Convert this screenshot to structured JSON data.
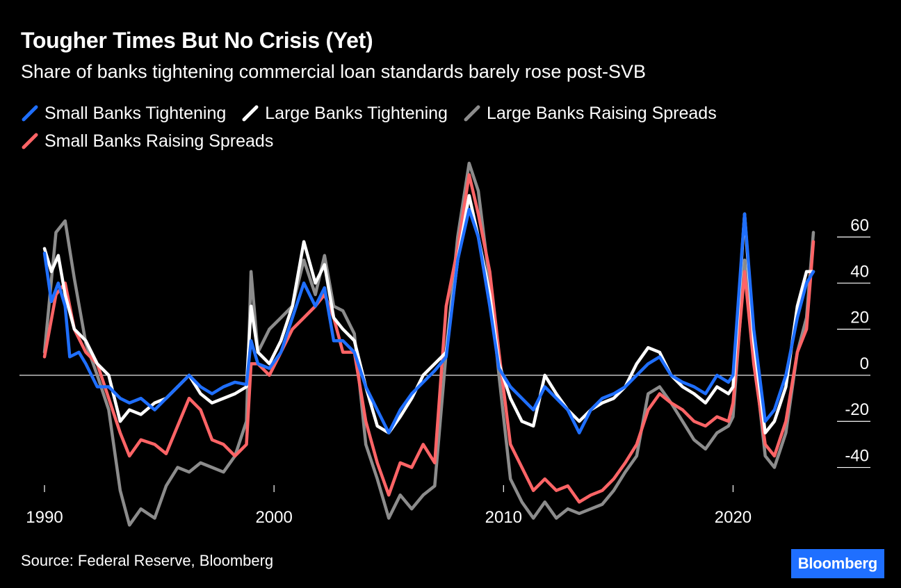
{
  "title": "Tougher Times But No Crisis (Yet)",
  "subtitle": "Share of banks tightening commercial loan standards barely rose post-SVB",
  "source": "Source: Federal Reserve, Bloomberg",
  "brand": "Bloomberg",
  "chart_data": {
    "type": "line",
    "title": "Tougher Times But No Crisis (Yet)",
    "subtitle": "Share of banks tightening commercial loan standards barely rose post-SVB",
    "xlabel": "",
    "ylabel": "",
    "xlim": [
      1990,
      2023.5
    ],
    "ylim": [
      -70,
      95
    ],
    "x_ticks": [
      {
        "value": 1990,
        "label": "1990"
      },
      {
        "value": 2000,
        "label": "2000"
      },
      {
        "value": 2010,
        "label": "2010"
      },
      {
        "value": 2020,
        "label": "2020"
      }
    ],
    "y_ticks": [
      {
        "value": 60,
        "label": "60"
      },
      {
        "value": 40,
        "label": "40"
      },
      {
        "value": 20,
        "label": "20"
      },
      {
        "value": 0,
        "label": "0"
      },
      {
        "value": -20,
        "label": "-20"
      },
      {
        "value": -40,
        "label": "-40"
      }
    ],
    "zero_line": 0,
    "grid": false,
    "legend_position": "top-left",
    "series": [
      {
        "name": "Large Banks Raising Spreads",
        "color": "#8c8c8c",
        "points": [
          [
            1990.0,
            10
          ],
          [
            1990.5,
            62
          ],
          [
            1990.9,
            67
          ],
          [
            1991.3,
            42
          ],
          [
            1991.8,
            14
          ],
          [
            1992.3,
            0
          ],
          [
            1992.8,
            -15
          ],
          [
            1993.3,
            -50
          ],
          [
            1993.7,
            -65
          ],
          [
            1994.2,
            -58
          ],
          [
            1994.8,
            -62
          ],
          [
            1995.3,
            -48
          ],
          [
            1995.8,
            -40
          ],
          [
            1996.3,
            -42
          ],
          [
            1996.8,
            -38
          ],
          [
            1997.3,
            -40
          ],
          [
            1997.8,
            -42
          ],
          [
            1998.3,
            -35
          ],
          [
            1998.8,
            -20
          ],
          [
            1999.0,
            45
          ],
          [
            1999.3,
            10
          ],
          [
            1999.8,
            20
          ],
          [
            2000.3,
            25
          ],
          [
            2000.8,
            30
          ],
          [
            2001.3,
            50
          ],
          [
            2001.8,
            35
          ],
          [
            2002.2,
            52
          ],
          [
            2002.6,
            30
          ],
          [
            2003.0,
            28
          ],
          [
            2003.5,
            18
          ],
          [
            2004.0,
            -30
          ],
          [
            2004.5,
            -45
          ],
          [
            2005.0,
            -62
          ],
          [
            2005.5,
            -52
          ],
          [
            2006.0,
            -58
          ],
          [
            2006.5,
            -52
          ],
          [
            2007.0,
            -48
          ],
          [
            2007.5,
            10
          ],
          [
            2008.0,
            60
          ],
          [
            2008.5,
            92
          ],
          [
            2008.9,
            80
          ],
          [
            2009.4,
            40
          ],
          [
            2009.8,
            0
          ],
          [
            2010.3,
            -45
          ],
          [
            2010.8,
            -55
          ],
          [
            2011.3,
            -62
          ],
          [
            2011.8,
            -55
          ],
          [
            2012.3,
            -62
          ],
          [
            2012.8,
            -58
          ],
          [
            2013.3,
            -60
          ],
          [
            2013.8,
            -58
          ],
          [
            2014.3,
            -56
          ],
          [
            2014.8,
            -50
          ],
          [
            2015.3,
            -42
          ],
          [
            2015.8,
            -35
          ],
          [
            2016.3,
            -8
          ],
          [
            2016.8,
            -5
          ],
          [
            2017.3,
            -12
          ],
          [
            2017.8,
            -20
          ],
          [
            2018.3,
            -28
          ],
          [
            2018.8,
            -32
          ],
          [
            2019.3,
            -25
          ],
          [
            2019.8,
            -22
          ],
          [
            2020.0,
            -18
          ],
          [
            2020.5,
            50
          ],
          [
            2020.9,
            10
          ],
          [
            2021.4,
            -35
          ],
          [
            2021.8,
            -40
          ],
          [
            2022.3,
            -25
          ],
          [
            2022.8,
            10
          ],
          [
            2023.2,
            25
          ],
          [
            2023.5,
            62
          ]
        ]
      },
      {
        "name": "Small Banks Raising Spreads",
        "color": "#ff6466",
        "points": [
          [
            1990.0,
            8
          ],
          [
            1990.5,
            35
          ],
          [
            1990.9,
            40
          ],
          [
            1991.3,
            20
          ],
          [
            1991.8,
            10
          ],
          [
            1992.3,
            5
          ],
          [
            1992.8,
            -10
          ],
          [
            1993.3,
            -25
          ],
          [
            1993.7,
            -35
          ],
          [
            1994.2,
            -28
          ],
          [
            1994.8,
            -30
          ],
          [
            1995.3,
            -34
          ],
          [
            1995.8,
            -22
          ],
          [
            1996.3,
            -10
          ],
          [
            1996.8,
            -15
          ],
          [
            1997.3,
            -28
          ],
          [
            1997.8,
            -30
          ],
          [
            1998.3,
            -35
          ],
          [
            1998.8,
            -30
          ],
          [
            1999.0,
            5
          ],
          [
            1999.3,
            5
          ],
          [
            1999.8,
            0
          ],
          [
            2000.3,
            10
          ],
          [
            2000.8,
            20
          ],
          [
            2001.3,
            25
          ],
          [
            2001.8,
            30
          ],
          [
            2002.2,
            35
          ],
          [
            2002.6,
            25
          ],
          [
            2003.0,
            10
          ],
          [
            2003.5,
            10
          ],
          [
            2004.0,
            -20
          ],
          [
            2004.5,
            -38
          ],
          [
            2005.0,
            -52
          ],
          [
            2005.5,
            -38
          ],
          [
            2006.0,
            -40
          ],
          [
            2006.5,
            -30
          ],
          [
            2007.0,
            -38
          ],
          [
            2007.5,
            30
          ],
          [
            2008.0,
            55
          ],
          [
            2008.5,
            87
          ],
          [
            2008.9,
            70
          ],
          [
            2009.4,
            45
          ],
          [
            2009.8,
            10
          ],
          [
            2010.3,
            -30
          ],
          [
            2010.8,
            -40
          ],
          [
            2011.3,
            -50
          ],
          [
            2011.8,
            -45
          ],
          [
            2012.3,
            -50
          ],
          [
            2012.8,
            -48
          ],
          [
            2013.3,
            -55
          ],
          [
            2013.8,
            -52
          ],
          [
            2014.3,
            -50
          ],
          [
            2014.8,
            -45
          ],
          [
            2015.3,
            -38
          ],
          [
            2015.8,
            -30
          ],
          [
            2016.3,
            -15
          ],
          [
            2016.8,
            -8
          ],
          [
            2017.3,
            -12
          ],
          [
            2017.8,
            -15
          ],
          [
            2018.3,
            -20
          ],
          [
            2018.8,
            -22
          ],
          [
            2019.3,
            -18
          ],
          [
            2019.8,
            -20
          ],
          [
            2020.0,
            -12
          ],
          [
            2020.5,
            45
          ],
          [
            2020.9,
            5
          ],
          [
            2021.4,
            -30
          ],
          [
            2021.8,
            -35
          ],
          [
            2022.3,
            -20
          ],
          [
            2022.8,
            10
          ],
          [
            2023.2,
            20
          ],
          [
            2023.5,
            58
          ]
        ]
      },
      {
        "name": "Large Banks Tightening",
        "color": "#ffffff",
        "points": [
          [
            1990.0,
            55
          ],
          [
            1990.3,
            45
          ],
          [
            1990.6,
            52
          ],
          [
            1990.9,
            35
          ],
          [
            1991.3,
            20
          ],
          [
            1991.8,
            15
          ],
          [
            1992.3,
            5
          ],
          [
            1992.8,
            0
          ],
          [
            1993.3,
            -20
          ],
          [
            1993.7,
            -15
          ],
          [
            1994.2,
            -17
          ],
          [
            1994.8,
            -12
          ],
          [
            1995.3,
            -10
          ],
          [
            1995.8,
            -5
          ],
          [
            1996.3,
            0
          ],
          [
            1996.8,
            -8
          ],
          [
            1997.3,
            -12
          ],
          [
            1997.8,
            -10
          ],
          [
            1998.3,
            -8
          ],
          [
            1998.8,
            -5
          ],
          [
            1999.0,
            30
          ],
          [
            1999.3,
            10
          ],
          [
            1999.8,
            5
          ],
          [
            2000.3,
            15
          ],
          [
            2000.8,
            30
          ],
          [
            2001.3,
            58
          ],
          [
            2001.8,
            40
          ],
          [
            2002.2,
            48
          ],
          [
            2002.6,
            25
          ],
          [
            2003.0,
            20
          ],
          [
            2003.5,
            15
          ],
          [
            2004.0,
            -5
          ],
          [
            2004.5,
            -22
          ],
          [
            2005.0,
            -25
          ],
          [
            2005.5,
            -18
          ],
          [
            2006.0,
            -10
          ],
          [
            2006.5,
            0
          ],
          [
            2007.0,
            5
          ],
          [
            2007.5,
            10
          ],
          [
            2008.0,
            50
          ],
          [
            2008.5,
            78
          ],
          [
            2008.9,
            60
          ],
          [
            2009.4,
            35
          ],
          [
            2009.8,
            5
          ],
          [
            2010.3,
            -10
          ],
          [
            2010.8,
            -20
          ],
          [
            2011.3,
            -22
          ],
          [
            2011.8,
            0
          ],
          [
            2012.3,
            -8
          ],
          [
            2012.8,
            -15
          ],
          [
            2013.3,
            -20
          ],
          [
            2013.8,
            -15
          ],
          [
            2014.3,
            -12
          ],
          [
            2014.8,
            -10
          ],
          [
            2015.3,
            -5
          ],
          [
            2015.8,
            5
          ],
          [
            2016.3,
            12
          ],
          [
            2016.8,
            10
          ],
          [
            2017.3,
            0
          ],
          [
            2017.8,
            -5
          ],
          [
            2018.3,
            -8
          ],
          [
            2018.8,
            -12
          ],
          [
            2019.3,
            -5
          ],
          [
            2019.8,
            -8
          ],
          [
            2020.0,
            -5
          ],
          [
            2020.5,
            70
          ],
          [
            2020.9,
            15
          ],
          [
            2021.4,
            -25
          ],
          [
            2021.8,
            -20
          ],
          [
            2022.3,
            -5
          ],
          [
            2022.8,
            30
          ],
          [
            2023.2,
            45
          ],
          [
            2023.5,
            45
          ]
        ]
      },
      {
        "name": "Small Banks Tightening",
        "color": "#1f6fff",
        "points": [
          [
            1990.0,
            53
          ],
          [
            1990.3,
            32
          ],
          [
            1990.6,
            40
          ],
          [
            1990.9,
            30
          ],
          [
            1991.1,
            8
          ],
          [
            1991.5,
            10
          ],
          [
            1991.8,
            5
          ],
          [
            1992.3,
            -5
          ],
          [
            1992.8,
            -5
          ],
          [
            1993.3,
            -10
          ],
          [
            1993.7,
            -12
          ],
          [
            1994.2,
            -10
          ],
          [
            1994.8,
            -15
          ],
          [
            1995.3,
            -10
          ],
          [
            1995.8,
            -5
          ],
          [
            1996.3,
            0
          ],
          [
            1996.8,
            -5
          ],
          [
            1997.3,
            -8
          ],
          [
            1997.8,
            -5
          ],
          [
            1998.3,
            -3
          ],
          [
            1998.8,
            -4
          ],
          [
            1999.0,
            15
          ],
          [
            1999.3,
            5
          ],
          [
            1999.8,
            3
          ],
          [
            2000.3,
            10
          ],
          [
            2000.8,
            25
          ],
          [
            2001.3,
            40
          ],
          [
            2001.8,
            30
          ],
          [
            2002.2,
            38
          ],
          [
            2002.6,
            15
          ],
          [
            2003.0,
            15
          ],
          [
            2003.5,
            10
          ],
          [
            2004.0,
            -5
          ],
          [
            2004.5,
            -15
          ],
          [
            2005.0,
            -25
          ],
          [
            2005.5,
            -15
          ],
          [
            2006.0,
            -8
          ],
          [
            2006.5,
            -3
          ],
          [
            2007.0,
            2
          ],
          [
            2007.5,
            8
          ],
          [
            2008.0,
            50
          ],
          [
            2008.5,
            72
          ],
          [
            2008.9,
            60
          ],
          [
            2009.4,
            30
          ],
          [
            2009.8,
            3
          ],
          [
            2010.3,
            -5
          ],
          [
            2010.8,
            -10
          ],
          [
            2011.3,
            -15
          ],
          [
            2011.8,
            -5
          ],
          [
            2012.3,
            -10
          ],
          [
            2012.8,
            -15
          ],
          [
            2013.3,
            -25
          ],
          [
            2013.8,
            -15
          ],
          [
            2014.3,
            -10
          ],
          [
            2014.8,
            -8
          ],
          [
            2015.3,
            -5
          ],
          [
            2015.8,
            0
          ],
          [
            2016.3,
            5
          ],
          [
            2016.8,
            8
          ],
          [
            2017.3,
            0
          ],
          [
            2017.8,
            -3
          ],
          [
            2018.3,
            -5
          ],
          [
            2018.8,
            -8
          ],
          [
            2019.3,
            0
          ],
          [
            2019.8,
            -3
          ],
          [
            2020.0,
            0
          ],
          [
            2020.5,
            70
          ],
          [
            2020.9,
            20
          ],
          [
            2021.4,
            -20
          ],
          [
            2021.8,
            -15
          ],
          [
            2022.3,
            0
          ],
          [
            2022.8,
            25
          ],
          [
            2023.2,
            40
          ],
          [
            2023.5,
            45
          ]
        ]
      }
    ]
  }
}
